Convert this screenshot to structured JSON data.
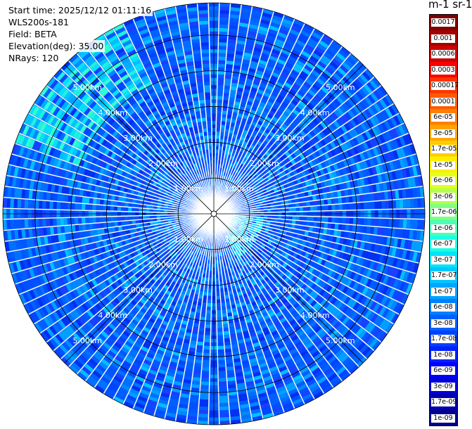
{
  "info": {
    "start_time": "Start time: 2025/12/12 01:11:16",
    "instrument": "WLS200s-181",
    "field": "Field: BETA",
    "elevation": "Elevation(deg): 35.00",
    "nrays": "NRays: 120"
  },
  "colorbar": {
    "unit_label": "m-1 sr-1",
    "labels": [
      "0.0017",
      "0.001",
      "0.0006",
      "0.0003",
      "0.00017",
      "0.0001",
      "6e-05",
      "3e-05",
      "1.7e-05",
      "1e-05",
      "6e-06",
      "3e-06",
      "1.7e-06",
      "1e-06",
      "6e-07",
      "3e-07",
      "1.7e-07",
      "1e-07",
      "6e-08",
      "3e-08",
      "1.7e-08",
      "1e-08",
      "6e-09",
      "3e-09",
      "1.7e-09",
      "1e-09"
    ],
    "colors": [
      "#7f0000",
      "#a30000",
      "#cc0000",
      "#ff0000",
      "#ff3300",
      "#ff5a00",
      "#ff7f00",
      "#ffa500",
      "#ffcc00",
      "#ffee00",
      "#e6ff1a",
      "#b5ff4a",
      "#80ff80",
      "#4aff b5",
      "#1affe6",
      "#00e4f8",
      "#00c8ff",
      "#00a4ff",
      "#0080ff",
      "#0060ff",
      "#0040ff",
      "#0020ff",
      "#0000ff",
      "#0000d8",
      "#0000b0",
      "#00008c"
    ]
  },
  "chart_data": {
    "type": "ppi",
    "field": "BETA",
    "elevation_deg": 35.0,
    "n_rays": 120,
    "max_range_km": 5.9,
    "range_rings_km": [
      1,
      2,
      3,
      4,
      5
    ],
    "ring_labels": [
      "1.00km",
      "2.00km",
      "3.00km",
      "4.00km",
      "5.00km"
    ],
    "background_level": "1e-08",
    "enhanced_regions": [
      {
        "azimuth_deg_from": 290,
        "azimuth_deg_to": 335,
        "range_km_from": 4.0,
        "range_km_to": 5.9,
        "level": "6e-08"
      },
      {
        "azimuth_deg_from": 95,
        "azimuth_deg_to": 150,
        "range_km_from": 0.2,
        "range_km_to": 1.3,
        "level": "6e-08"
      }
    ]
  }
}
